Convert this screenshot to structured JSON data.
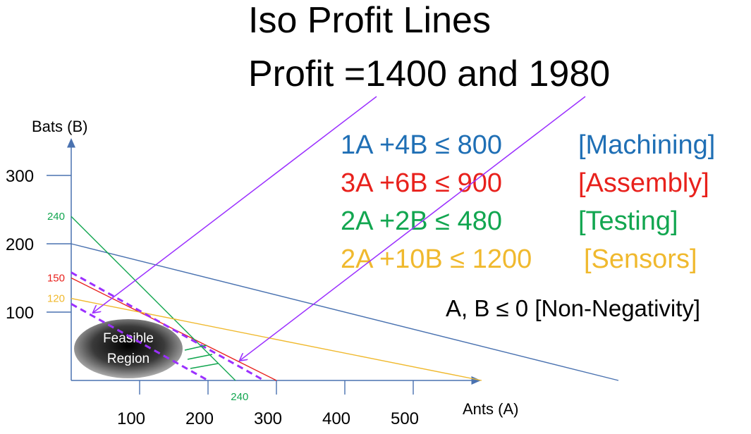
{
  "title": {
    "line1": "Iso Profit Lines",
    "line2": "Profit =1400 and 1980"
  },
  "constraints": [
    {
      "expr": "1A +4B ≤ 800",
      "label": "[Machining]",
      "color": "#1f6fb5"
    },
    {
      "expr": "3A +6B ≤ 900",
      "label": "[Assembly]",
      "color": "#e8211c"
    },
    {
      "expr": "2A +2B ≤ 480",
      "label": "[Testing]",
      "color": "#12a650"
    },
    {
      "expr": "2A +10B ≤ 1200",
      "label": "[Sensors]",
      "color": "#f0b92e"
    }
  ],
  "nonneg": "A, B ≤ 0 [Non-Negativity]",
  "feasible_label_1": "Feasible",
  "feasible_label_2": "Region",
  "chart_data": {
    "type": "line",
    "xlabel": "Ants (A)",
    "ylabel": "Bats (B)",
    "x_ticks": [
      100,
      200,
      300,
      400,
      500
    ],
    "y_ticks": [
      100,
      200,
      300
    ],
    "series": [
      {
        "name": "Machining",
        "color": "#4a72b0",
        "from": [
          0,
          200
        ],
        "to": [
          800,
          0
        ]
      },
      {
        "name": "Assembly",
        "color": "#e8211c",
        "from": [
          0,
          150
        ],
        "to": [
          300,
          0
        ]
      },
      {
        "name": "Testing",
        "color": "#12a650",
        "from": [
          0,
          240
        ],
        "to": [
          240,
          0
        ]
      },
      {
        "name": "Sensors",
        "color": "#f0b92e",
        "from": [
          0,
          120
        ],
        "to": [
          600,
          0
        ]
      },
      {
        "name": "Profit 1400",
        "color": "#9b30ff",
        "dashed": true,
        "from": [
          0,
          112
        ],
        "to": [
          200,
          0
        ]
      },
      {
        "name": "Profit 1980",
        "color": "#9b30ff",
        "dashed": true,
        "from": [
          0,
          158
        ],
        "to": [
          282,
          0
        ]
      }
    ],
    "intercept_labels": [
      {
        "text": "240",
        "axis": "y",
        "value": 240,
        "color": "#12a650"
      },
      {
        "text": "150",
        "axis": "y",
        "value": 150,
        "color": "#e8211c"
      },
      {
        "text": "120",
        "axis": "y",
        "value": 120,
        "color": "#f0b92e"
      },
      {
        "text": "240",
        "axis": "x",
        "value": 240,
        "color": "#12a650"
      }
    ]
  }
}
